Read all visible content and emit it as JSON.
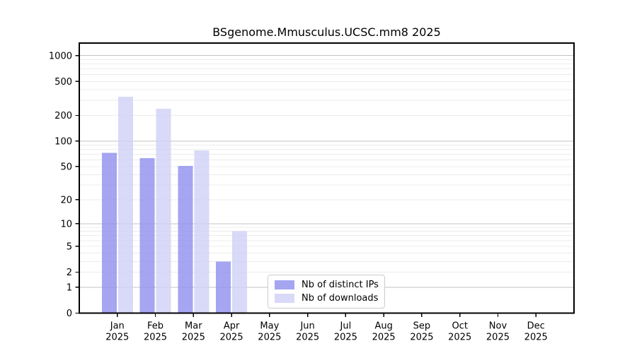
{
  "chart_data": {
    "type": "bar",
    "title": "BSgenome.Mmusculus.UCSC.mm8 2025",
    "categories": [
      "Jan",
      "Feb",
      "Mar",
      "Apr",
      "May",
      "Jun",
      "Jul",
      "Aug",
      "Sep",
      "Oct",
      "Nov",
      "Dec"
    ],
    "x_tick_year_line": "2025",
    "series": [
      {
        "name": "Nb of distinct IPs",
        "color": "#a5a5f2",
        "values": [
          73,
          63,
          51,
          3,
          0,
          0,
          0,
          0,
          0,
          0,
          0,
          0
        ]
      },
      {
        "name": "Nb of downloads",
        "color": "#d9d9f8",
        "values": [
          330,
          240,
          78,
          8,
          0,
          0,
          0,
          0,
          0,
          0,
          0,
          0
        ]
      }
    ],
    "yscale": "log1p",
    "ylim": [
      0,
      1400
    ],
    "y_ticks": [
      0,
      1,
      2,
      5,
      10,
      20,
      50,
      100,
      200,
      500,
      1000
    ],
    "grid": {
      "orientation": "horizontal",
      "major_values": [
        1,
        10,
        100,
        1000
      ],
      "major_color": "#c3c3c3",
      "minor_color": "#ececec"
    },
    "legend_position": "lower-center-inside",
    "axis_color": "#000000",
    "background_color": "#ffffff"
  }
}
